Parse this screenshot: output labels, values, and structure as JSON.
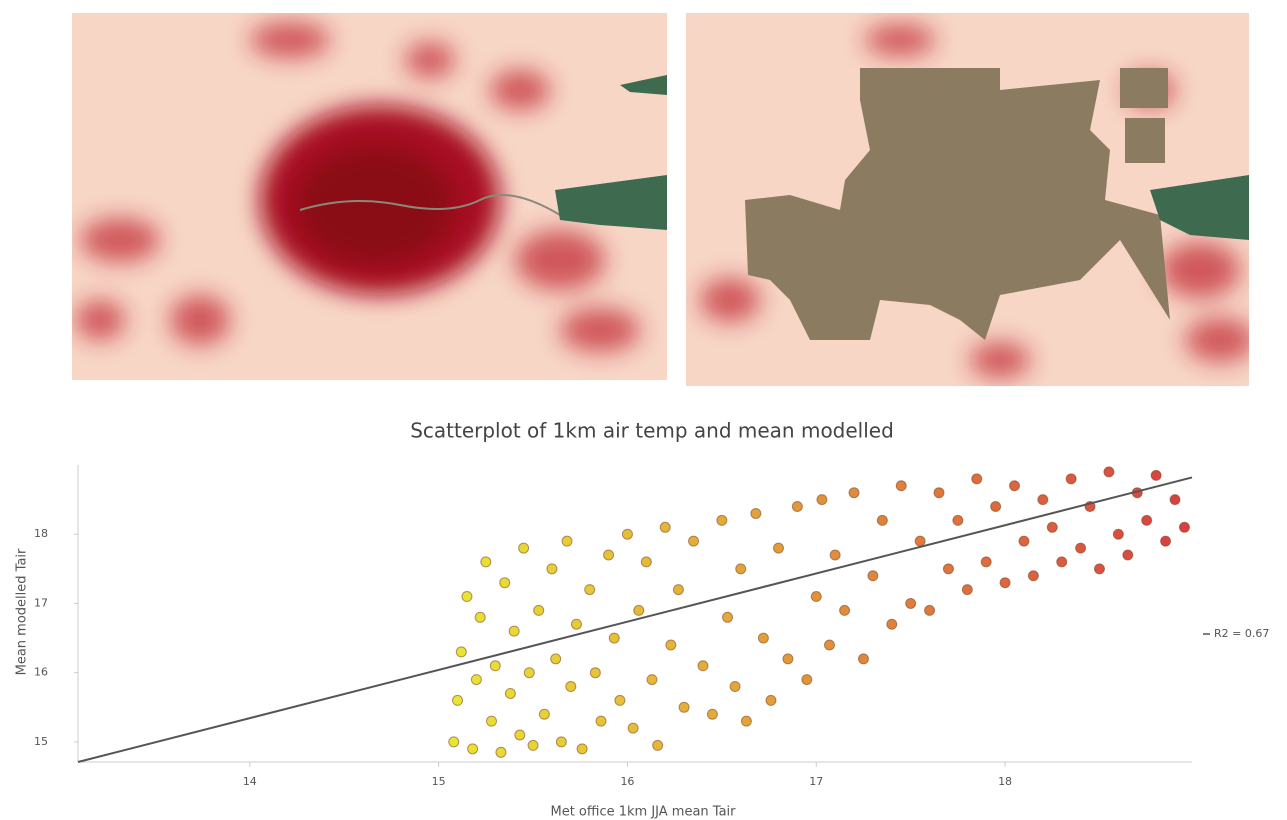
{
  "chart_data": {
    "type": "scatter",
    "title": "Scatterplot of 1km air temp and mean modelled",
    "x_label": "Met office 1km JJA mean Tair",
    "y_label": "Mean modelled Tair",
    "xlim": [
      13.09,
      18.99
    ],
    "ylim": [
      14.71,
      19.0
    ],
    "xticks": [
      14,
      15,
      16,
      17,
      18
    ],
    "yticks": [
      15,
      16,
      17,
      18
    ],
    "color_scale": [
      "#e6e31e",
      "#d42a2e"
    ],
    "series": [
      {
        "x": [
          15.08,
          15.1,
          15.12,
          15.15,
          15.18,
          15.2,
          15.22,
          15.25,
          15.28,
          15.3,
          15.33,
          15.35,
          15.38,
          15.4,
          15.43,
          15.45,
          15.48,
          15.5,
          15.53,
          15.56,
          15.6,
          15.62,
          15.65,
          15.68,
          15.7,
          15.73,
          15.76,
          15.8,
          15.83,
          15.86,
          15.9,
          15.93,
          15.96,
          16.0,
          16.03,
          16.06,
          16.1,
          16.13,
          16.16,
          16.2,
          16.23,
          16.27,
          16.3,
          16.35,
          16.4,
          16.45,
          16.5,
          16.53,
          16.57,
          16.6,
          16.63,
          16.68,
          16.72,
          16.76,
          16.8,
          16.85,
          16.9,
          16.95,
          17.0,
          17.03,
          17.07,
          17.1,
          17.15,
          17.2,
          17.25,
          17.3,
          17.35,
          17.4,
          17.45,
          17.5,
          17.55,
          17.6,
          17.65,
          17.7,
          17.75,
          17.8,
          17.85,
          17.9,
          17.95,
          18.0,
          18.05,
          18.1,
          18.15,
          18.2,
          18.25,
          18.3,
          18.35,
          18.4,
          18.45,
          18.5,
          18.55,
          18.6,
          18.65,
          18.7,
          18.75,
          18.8,
          18.85,
          18.9,
          18.95
        ],
        "values": [
          15.0,
          15.6,
          16.3,
          17.1,
          14.9,
          15.9,
          16.8,
          17.6,
          15.3,
          16.1,
          14.85,
          17.3,
          15.7,
          16.6,
          15.1,
          17.8,
          16.0,
          14.95,
          16.9,
          15.4,
          17.5,
          16.2,
          15.0,
          17.9,
          15.8,
          16.7,
          14.9,
          17.2,
          16.0,
          15.3,
          17.7,
          16.5,
          15.6,
          18.0,
          15.2,
          16.9,
          17.6,
          15.9,
          14.95,
          18.1,
          16.4,
          17.2,
          15.5,
          17.9,
          16.1,
          15.4,
          18.2,
          16.8,
          15.8,
          17.5,
          15.3,
          18.3,
          16.5,
          15.6,
          17.8,
          16.2,
          18.4,
          15.9,
          17.1,
          18.5,
          16.4,
          17.7,
          16.9,
          18.6,
          16.2,
          17.4,
          18.2,
          16.7,
          18.7,
          17.0,
          17.9,
          16.9,
          18.6,
          17.5,
          18.2,
          17.2,
          18.8,
          17.6,
          18.4,
          17.3,
          18.7,
          17.9,
          17.4,
          18.5,
          18.1,
          17.6,
          18.8,
          17.8,
          18.4,
          17.5,
          18.9,
          18.0,
          17.7,
          18.6,
          18.2,
          18.85,
          17.9,
          18.5,
          18.1
        ]
      }
    ],
    "trendline": {
      "name": "R2 = 0.67",
      "color": "#555555",
      "x": [
        13.09,
        18.99
      ],
      "y": [
        14.71,
        18.82
      ]
    }
  }
}
